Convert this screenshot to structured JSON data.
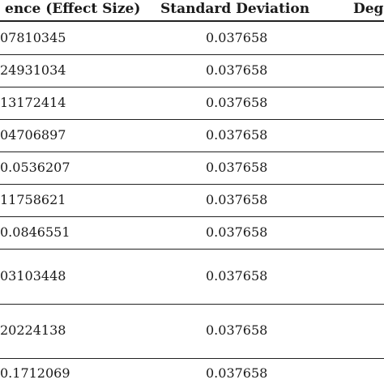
{
  "table": {
    "headers": {
      "difference": "ence (Effect Size)",
      "sd": "Standard Deviation",
      "degrees": "Deg"
    },
    "rows": [
      {
        "difference": "07810345",
        "sd": "0.037658"
      },
      {
        "difference": "24931034",
        "sd": "0.037658"
      },
      {
        "difference": "13172414",
        "sd": "0.037658"
      },
      {
        "difference": "04706897",
        "sd": "0.037658"
      },
      {
        "difference": "0.0536207",
        "sd": "0.037658"
      },
      {
        "difference": "11758621",
        "sd": "0.037658"
      },
      {
        "difference": "0.0846551",
        "sd": "0.037658"
      },
      {
        "difference": "03103448",
        "sd": "0.037658"
      },
      {
        "difference": "20224138",
        "sd": "0.037658"
      },
      {
        "difference": "0.1712069",
        "sd": "0.037658"
      }
    ]
  }
}
